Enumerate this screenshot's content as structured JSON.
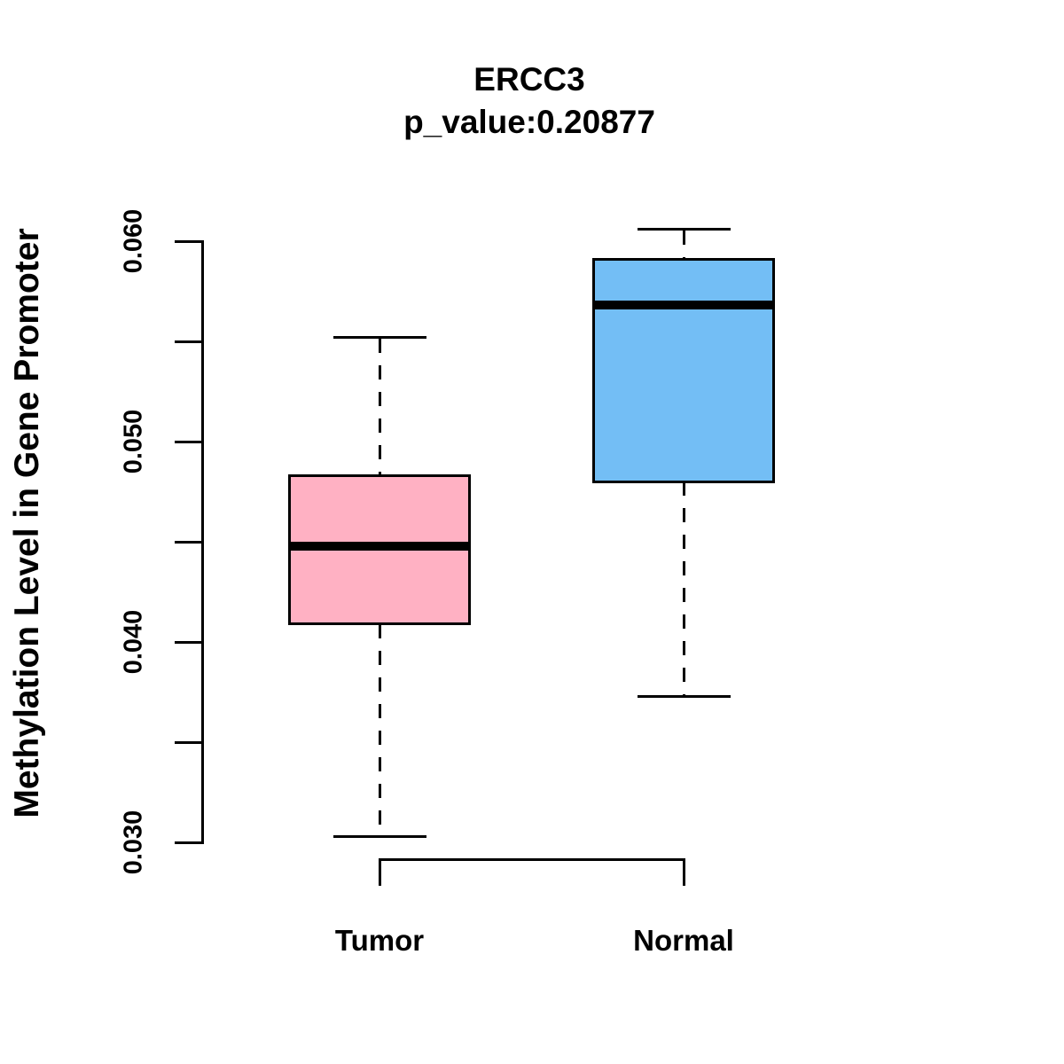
{
  "chart_data": {
    "type": "boxplot",
    "title": "ERCC3",
    "subtitle": "p_value:0.20877",
    "p_value": "0.20877",
    "ylabel": "Methylation Level in Gene Promoter",
    "xlabel": "",
    "categories": [
      "Tumor",
      "Normal"
    ],
    "ylim": [
      0.03,
      0.06
    ],
    "yticks_major": [
      0.03,
      0.04,
      0.05,
      0.06
    ],
    "ytick_labels": [
      "0.030",
      "0.040",
      "0.050",
      "0.060"
    ],
    "yticks_minor": [
      0.035,
      0.045,
      0.055
    ],
    "grid": false,
    "legend": "none",
    "series": [
      {
        "name": "Tumor",
        "fill": "#FFB1C3",
        "whisker_low": 0.0303,
        "q1": 0.0409,
        "median": 0.0448,
        "q3": 0.0483,
        "whisker_high": 0.0552
      },
      {
        "name": "Normal",
        "fill": "#73BEF5",
        "whisker_low": 0.0373,
        "q1": 0.048,
        "median": 0.0568,
        "q3": 0.0591,
        "whisker_high": 0.0606
      }
    ],
    "colors": {
      "tumor_fill": "#FFB1C3",
      "normal_fill": "#73BEF5",
      "line": "#000000",
      "background": "#FFFFFF"
    }
  }
}
